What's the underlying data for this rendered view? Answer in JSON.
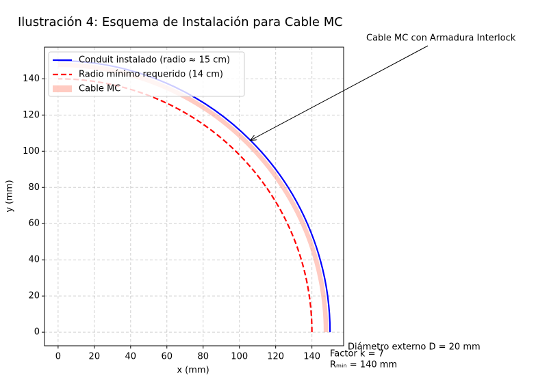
{
  "chart_data": {
    "type": "arc",
    "title": "Ilustración 4: Esquema de Instalación para Cable MC",
    "xlabel": "x (mm)",
    "ylabel": "y (mm)",
    "xlim": [
      -7.5,
      157.5
    ],
    "ylim": [
      -7.5,
      157.5
    ],
    "xticks": [
      0,
      20,
      40,
      60,
      80,
      100,
      120,
      140
    ],
    "yticks": [
      0,
      20,
      40,
      60,
      80,
      100,
      120,
      140
    ],
    "grid": true,
    "legend": "upper left",
    "series": [
      {
        "name": "Conduit instalado (radio ≈ 15 cm)",
        "color": "#0000ff",
        "radius": 150,
        "linestyle": "solid"
      },
      {
        "name": "Radio mínimo requerido (14 cm)",
        "color": "#ff0000",
        "radius": 140,
        "linestyle": "dashed"
      }
    ],
    "bands": [
      {
        "name": "Cable MC",
        "color": "#ffa090",
        "inner_radius": 146.5,
        "outer_radius": 149
      }
    ],
    "annotation": {
      "text": "Cable MC con Armadura Interlock",
      "xy": [
        106,
        106
      ]
    },
    "notes": [
      "Diámetro externo D = 20 mm",
      "Factor k = 7",
      "Rₘᵢₙ = 140 mm"
    ]
  }
}
